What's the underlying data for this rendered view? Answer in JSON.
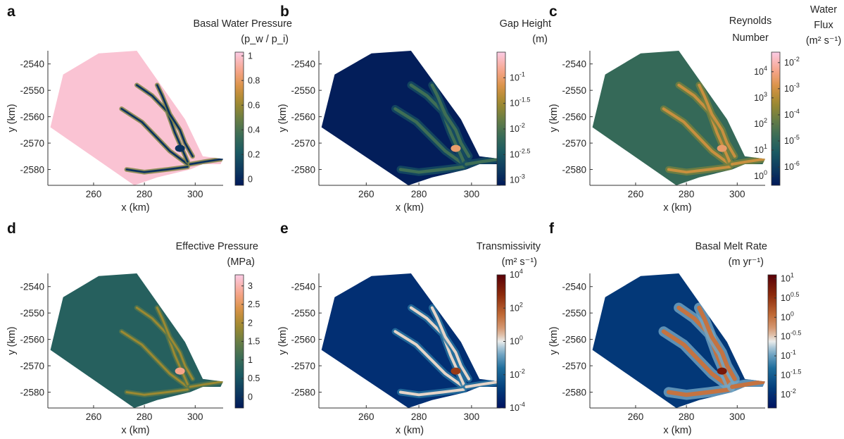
{
  "chart_data": [
    {
      "type": "heatmap",
      "panel_label": "a",
      "title": "Basal Water Pressure",
      "units": "(p_w / p_i)",
      "xlabel": "x (km)",
      "ylabel": "y (km)",
      "xlim": [
        242,
        311
      ],
      "ylim": [
        -2586,
        -2535
      ],
      "xticks": [
        260,
        280,
        300
      ],
      "yticks": [
        -2540,
        -2550,
        -2560,
        -2570,
        -2580
      ],
      "colormap": "batlow",
      "colorbar_scale": "linear",
      "clim": [
        -0.05,
        1.03
      ],
      "colorbar_ticks": [
        {
          "value": 1,
          "label": "1"
        },
        {
          "value": 0.8,
          "label": "0.8"
        },
        {
          "value": 0.6,
          "label": "0.6"
        },
        {
          "value": 0.4,
          "label": "0.4"
        },
        {
          "value": 0.2,
          "label": "0.2"
        },
        {
          "value": 0,
          "label": "0"
        }
      ],
      "field": {
        "background": 1.0,
        "channel": 0.05,
        "channel_width": 0.55,
        "hotspot": 0.05
      }
    },
    {
      "type": "heatmap",
      "panel_label": "b",
      "title": "Gap Height",
      "units": "(m)",
      "xlabel": "x (km)",
      "ylabel": "y (km)",
      "xlim": [
        242,
        311
      ],
      "ylim": [
        -2586,
        -2535
      ],
      "xticks": [
        260,
        280,
        300
      ],
      "yticks": [
        -2540,
        -2550,
        -2560,
        -2570,
        -2580
      ],
      "colormap": "batlow",
      "colorbar_scale": "log10",
      "clim": [
        -3.1,
        -0.5
      ],
      "colorbar_ticks": [
        {
          "value": -1,
          "label": "10",
          "exp": "-1"
        },
        {
          "value": -1.5,
          "label": "10",
          "exp": "-1.5"
        },
        {
          "value": -2,
          "label": "10",
          "exp": "-2"
        },
        {
          "value": -2.5,
          "label": "10",
          "exp": "-2.5"
        },
        {
          "value": -3,
          "label": "10",
          "exp": "-3"
        }
      ],
      "field": {
        "background": -3.05,
        "channel": -2.1,
        "channel_width": 0.9,
        "hotspot": -1.0
      }
    },
    {
      "type": "heatmap",
      "panel_label": "c",
      "title": "Reynolds Number",
      "title2": "Water Flux",
      "units2": "(m² s⁻¹)",
      "xlabel": "x (km)",
      "ylabel": "y (km)",
      "xlim": [
        242,
        311
      ],
      "ylim": [
        -2586,
        -2535
      ],
      "xticks": [
        260,
        280,
        300
      ],
      "yticks": [
        -2540,
        -2550,
        -2560,
        -2570,
        -2580
      ],
      "colormap": "batlow",
      "colorbar_scale": "log10",
      "clim": [
        -6.7,
        -1.6
      ],
      "colorbar_ticks": [
        {
          "value": -2,
          "label": "10",
          "exp": "-2"
        },
        {
          "value": -3,
          "label": "10",
          "exp": "-3"
        },
        {
          "value": -4,
          "label": "10",
          "exp": "-4"
        },
        {
          "value": -5,
          "label": "10",
          "exp": "-5"
        },
        {
          "value": -6,
          "label": "10",
          "exp": "-6"
        }
      ],
      "left_ticks": [
        {
          "label": "10",
          "exp": "4",
          "value": -2.35
        },
        {
          "label": "10",
          "exp": "3",
          "value": -3.35
        },
        {
          "label": "10",
          "exp": "2",
          "value": -4.35
        },
        {
          "label": "10",
          "exp": "1",
          "value": -5.35
        },
        {
          "label": "10",
          "exp": "0",
          "value": -6.35
        }
      ],
      "field": {
        "background": -4.9,
        "channel": -3.1,
        "channel_width": 0.8,
        "hotspot": -2.6
      }
    },
    {
      "type": "heatmap",
      "panel_label": "d",
      "title": "Effective Pressure",
      "units": "(MPa)",
      "xlabel": "x (km)",
      "ylabel": "y (km)",
      "xlim": [
        242,
        311
      ],
      "ylim": [
        -2586,
        -2535
      ],
      "xticks": [
        260,
        280,
        300
      ],
      "yticks": [
        -2540,
        -2550,
        -2560,
        -2570,
        -2580
      ],
      "colormap": "batlow",
      "colorbar_scale": "linear",
      "clim": [
        -0.3,
        3.3
      ],
      "colorbar_ticks": [
        {
          "value": 3,
          "label": "3"
        },
        {
          "value": 2.5,
          "label": "2.5"
        },
        {
          "value": 2,
          "label": "2"
        },
        {
          "value": 1.5,
          "label": "1.5"
        },
        {
          "value": 1,
          "label": "1"
        },
        {
          "value": 0.5,
          "label": "0.5"
        },
        {
          "value": 0,
          "label": "0"
        }
      ],
      "field": {
        "background": 0.75,
        "channel": 1.9,
        "channel_width": 0.6,
        "hotspot": 2.8
      }
    },
    {
      "type": "heatmap",
      "panel_label": "e",
      "title": "Transmissivity",
      "units": "(m² s⁻¹)",
      "xlabel": "x (km)",
      "ylabel": "y (km)",
      "xlim": [
        242,
        311
      ],
      "ylim": [
        -2586,
        -2535
      ],
      "xticks": [
        260,
        280,
        300
      ],
      "yticks": [
        -2540,
        -2550,
        -2560,
        -2570,
        -2580
      ],
      "colormap": "vik",
      "colorbar_scale": "log10",
      "clim": [
        -4,
        4
      ],
      "colorbar_ticks": [
        {
          "value": 4,
          "label": "10",
          "exp": "4"
        },
        {
          "value": 2,
          "label": "10",
          "exp": "2"
        },
        {
          "value": 0,
          "label": "10",
          "exp": "0"
        },
        {
          "value": -2,
          "label": "10",
          "exp": "-2"
        },
        {
          "value": -4,
          "label": "10",
          "exp": "-4"
        }
      ],
      "field": {
        "background": -3.2,
        "channel": 0.2,
        "channel_width": 0.8,
        "hotspot": 2.5
      }
    },
    {
      "type": "heatmap",
      "panel_label": "f",
      "title": "Basal Melt Rate",
      "units": "(m yr⁻¹)",
      "xlabel": "x (km)",
      "ylabel": "y (km)",
      "xlim": [
        242,
        311
      ],
      "ylim": [
        -2586,
        -2535
      ],
      "xticks": [
        260,
        280,
        300
      ],
      "yticks": [
        -2540,
        -2550,
        -2560,
        -2570,
        -2580
      ],
      "colormap": "vik",
      "colorbar_scale": "log10",
      "clim": [
        -2.35,
        1.1
      ],
      "colorbar_ticks": [
        {
          "value": 1,
          "label": "10",
          "exp": "1"
        },
        {
          "value": 0.5,
          "label": "10",
          "exp": "0.5"
        },
        {
          "value": 0,
          "label": "10",
          "exp": "0"
        },
        {
          "value": -0.5,
          "label": "10",
          "exp": "-0.5"
        },
        {
          "value": -1,
          "label": "10",
          "exp": "-1"
        },
        {
          "value": -1.5,
          "label": "10",
          "exp": "-1.5"
        },
        {
          "value": -2,
          "label": "10",
          "exp": "-2"
        }
      ],
      "field": {
        "background": -1.9,
        "channel": 0.0,
        "channel_width": 1.2,
        "hotspot": 0.8
      }
    }
  ],
  "domain_outline_km": [
    [
      243,
      -2564
    ],
    [
      248,
      -2544
    ],
    [
      262,
      -2536
    ],
    [
      277,
      -2535
    ],
    [
      296,
      -2561
    ],
    [
      303,
      -2575
    ],
    [
      311,
      -2576
    ],
    [
      310,
      -2578
    ],
    [
      303,
      -2578
    ],
    [
      298,
      -2580
    ],
    [
      285,
      -2583
    ],
    [
      276,
      -2586
    ]
  ],
  "channel_network_km": [
    [
      [
        297,
        -2578
      ],
      [
        290,
        -2573
      ],
      [
        285,
        -2568
      ],
      [
        279,
        -2562
      ],
      [
        271,
        -2557
      ]
    ],
    [
      [
        297,
        -2577
      ],
      [
        292,
        -2566
      ],
      [
        289,
        -2558
      ],
      [
        283,
        -2552
      ],
      [
        277,
        -2548
      ]
    ],
    [
      [
        299,
        -2575
      ],
      [
        296,
        -2570
      ],
      [
        294,
        -2565
      ],
      [
        290,
        -2559
      ],
      [
        287,
        -2552
      ],
      [
        285,
        -2548
      ]
    ],
    [
      [
        297,
        -2579
      ],
      [
        289,
        -2580
      ],
      [
        280,
        -2581
      ],
      [
        273,
        -2580
      ]
    ],
    [
      [
        298,
        -2578
      ],
      [
        304,
        -2577
      ],
      [
        311,
        -2576
      ]
    ]
  ]
}
